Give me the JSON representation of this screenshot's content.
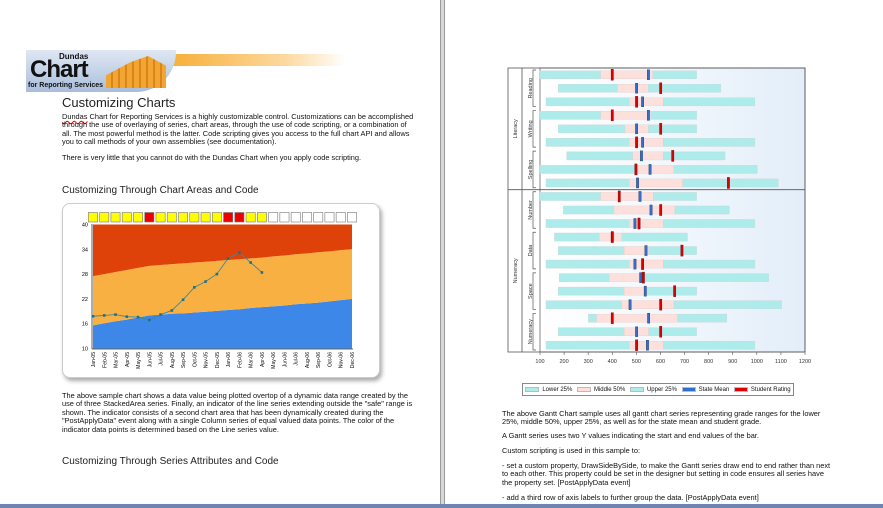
{
  "logo": {
    "brand": "Dundas",
    "product": "Chart",
    "subtitle": "for Reporting Services"
  },
  "left": {
    "title": "Customizing Charts",
    "p1_word": "Dundas",
    "p1": " Chart for Reporting Services is a highly customizable control.  Customizations can be accomplished through the use of overlaying of series, chart areas, through the use of code scripting, or a combination of all.  The most powerful method is the latter.  Code scripting gives you access to the full chart API and allows you to call methods of your own assemblies (see documentation).",
    "p2": "There is very little that you cannot do with the Dundas Chart when you apply code scripting.",
    "h2a": "Customizing Through Chart Areas and Code",
    "p3": "The above sample chart shows a data value being plotted overtop of a dynamic data range created by the use of three StackedArea series.  Finally, an indicator of the line series extending outside the \"safe\" range is shown.  The indicator consists of a second chart area that has been dynamically created during the \"PostApplyData\" event along with a single Column series of equal valued data points.  The color of the indicator data points is determined based on the Line series value.",
    "h2b": "Customizing Through Series Attributes and Code"
  },
  "right": {
    "p1": "The above Gantt Chart sample uses all gantt chart series representing grade ranges for the lower 25%, middle 50%, upper 25%, as well as for the state mean and student grade.",
    "p2": "A Gantt series uses two Y values indicating the start and end values of the bar.",
    "p3": "Custom scripting is used in this sample to:",
    "p4": "- set a custom property, DrawSideBySide, to make the Gantt series draw end to end rather than next to each other.  This property could be set in the designer but setting in code ensures all series have the property set.  [PostApplyData event]",
    "p5": "- add a third row of axis labels to further group the data.  [PostApplyData event]"
  },
  "chart_data": [
    {
      "type": "area",
      "title": "",
      "ylim": [
        10,
        40
      ],
      "yticks": [
        10,
        16,
        22,
        28,
        34,
        40
      ],
      "categories": [
        "Jan-05",
        "Feb-05",
        "Mar-05",
        "Apr-05",
        "May-05",
        "Jun-05",
        "Jul-05",
        "Aug-05",
        "Sep-05",
        "Oct-05",
        "Nov-05",
        "Dec-05",
        "Jan-06",
        "Feb-06",
        "Mar-06",
        "Apr-06",
        "May-06",
        "Jun-06",
        "Jul-06",
        "Aug-06",
        "Sep-06",
        "Oct-06",
        "Nov-06",
        "Dec-06"
      ],
      "stacked_tops": {
        "low": [
          15.6,
          16.1,
          16.6,
          17.0,
          17.5,
          18.0,
          18.2,
          18.4,
          18.5,
          18.7,
          18.9,
          19.1,
          19.3,
          19.5,
          19.8,
          20.0,
          20.2,
          20.4,
          20.7,
          20.9,
          21.1,
          21.4,
          21.7,
          22.0
        ],
        "mid": [
          27.5,
          28.0,
          28.5,
          29.0,
          29.5,
          30.0,
          30.2,
          30.4,
          30.6,
          30.8,
          31.0,
          31.2,
          31.4,
          31.6,
          31.8,
          32.0,
          32.3,
          32.5,
          32.8,
          33.0,
          33.3,
          33.5,
          33.8,
          34.0
        ],
        "high": [
          40,
          40,
          40,
          40,
          40,
          40,
          40,
          40,
          40,
          40,
          40,
          40,
          40,
          40,
          40,
          40,
          40,
          40,
          40,
          40,
          40,
          40,
          40,
          40
        ]
      },
      "colors": {
        "low": "#3d87e8",
        "mid": "#f9b042",
        "high": "#de4209",
        "line": "#3a8a9a"
      },
      "line": [
        17.8,
        18.0,
        18.2,
        17.7,
        17.6,
        16.9,
        18.2,
        19.2,
        21.8,
        24.8,
        26.2,
        28.0,
        31.8,
        33.2,
        30.8,
        28.4
      ],
      "indicators": [
        "yellow",
        "yellow",
        "yellow",
        "yellow",
        "yellow",
        "red",
        "yellow",
        "yellow",
        "yellow",
        "yellow",
        "yellow",
        "yellow",
        "red",
        "red",
        "yellow",
        "yellow",
        "white",
        "white",
        "white",
        "white",
        "white",
        "white",
        "white",
        "white"
      ]
    },
    {
      "type": "gantt",
      "xlim": [
        100,
        1200
      ],
      "xticks": [
        100,
        200,
        300,
        400,
        500,
        600,
        700,
        800,
        900,
        1000,
        1100,
        1200
      ],
      "groups": [
        {
          "name": "Literacy",
          "categories": [
            "Reading",
            "Writing",
            "Spelling"
          ]
        },
        {
          "name": "Numeracy",
          "categories": [
            "Number",
            "Data",
            "Space",
            "Numeracy"
          ]
        }
      ],
      "legend": [
        "Lower 25%",
        "Middle 50%",
        "Upper 25%",
        "State Mean",
        "Student Rating"
      ],
      "colors": {
        "lower": "#aeeceb",
        "middle": "#fde0dc",
        "upper": "#aeeceb",
        "mean": "#2f6fd0",
        "rating": "#dd0000"
      },
      "rows": [
        [
          100,
          352,
          568,
          750,
          550,
          400
        ],
        [
          176,
          421,
          550,
          850,
          501,
          601
        ],
        [
          125,
          471,
          612,
          992,
          526,
          501
        ],
        [
          100,
          352,
          560,
          750,
          550,
          400
        ],
        [
          176,
          453,
          550,
          750,
          501,
          601
        ],
        [
          125,
          471,
          612,
          992,
          526,
          501
        ],
        [
          211,
          485,
          612,
          868,
          521,
          651
        ],
        [
          100,
          505,
          656,
          1002,
          557,
          498
        ],
        [
          125,
          471,
          692,
          1089,
          505,
          882
        ],
        [
          100,
          352,
          570,
          750,
          515,
          429
        ],
        [
          197,
          407,
          660,
          886,
          561,
          601
        ],
        [
          125,
          471,
          612,
          992,
          494,
          511
        ],
        [
          160,
          346,
          439,
          712,
          400,
          400
        ],
        [
          176,
          450,
          551,
          750,
          540,
          689
        ],
        [
          125,
          471,
          612,
          992,
          494,
          526
        ],
        [
          180,
          388,
          522,
          1049,
          518,
          529
        ],
        [
          176,
          450,
          543,
          750,
          537,
          659
        ],
        [
          125,
          439,
          656,
          1103,
          474,
          601
        ],
        [
          301,
          335,
          671,
          875,
          551,
          400
        ],
        [
          176,
          450,
          551,
          750,
          501,
          601
        ],
        [
          125,
          471,
          612,
          992,
          546,
          501
        ]
      ],
      "row_fields": [
        "lower_start",
        "middle_start",
        "middle_end",
        "upper_end",
        "state_mean",
        "student_rating"
      ]
    }
  ]
}
